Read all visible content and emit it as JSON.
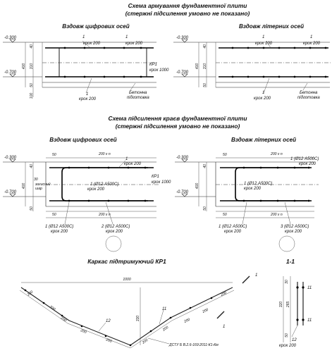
{
  "titles": {
    "scheme1_line1": "Схема армування фундаментної плити",
    "scheme1_line2": "(стержні підсилення умовно не показано)",
    "scheme2_line1": "Схема підсилення краєв фундаментної плити",
    "scheme2_line2": "(стержні підсилення умовно не показано)",
    "carcass": "Каркас підтримуючий КР1",
    "section": "1-1"
  },
  "views": {
    "digital_axes": "Вздовж цифрових осей",
    "letter_axes": "Вздовж літерних осей"
  },
  "levels": {
    "top": "-0.300",
    "bottom": "-0.700"
  },
  "dims": {
    "d400": "400",
    "d310": "310",
    "d40": "40",
    "d50": "50",
    "d100": "100",
    "d30": "30",
    "d1000": "1000",
    "d330": "330",
    "d320": "320",
    "d265": "265",
    "d200": "200",
    "d200xn": "200 х n"
  },
  "labels": {
    "n1": "1",
    "n2": "2",
    "n3": "3",
    "n11": "11",
    "n12": "12",
    "step200": "крок 200",
    "step100": "крок 100",
    "step1000": "крок 1000",
    "kr1": "КР1",
    "concrete": "Бетонна",
    "prep": "підготовка",
    "rebar_1": "1 (Ø12 А500С)",
    "rebar_2": "2 (Ø12 А500С)",
    "rebar_3": "3 (Ø12 А500С)",
    "protective": "захисний",
    "layer": "шар",
    "dstu": "ДСТУ Б В.2.6-169:2011-К1-Км"
  },
  "colors": {
    "line": "#222222",
    "bar": "#000000",
    "background": "#ffffff"
  }
}
